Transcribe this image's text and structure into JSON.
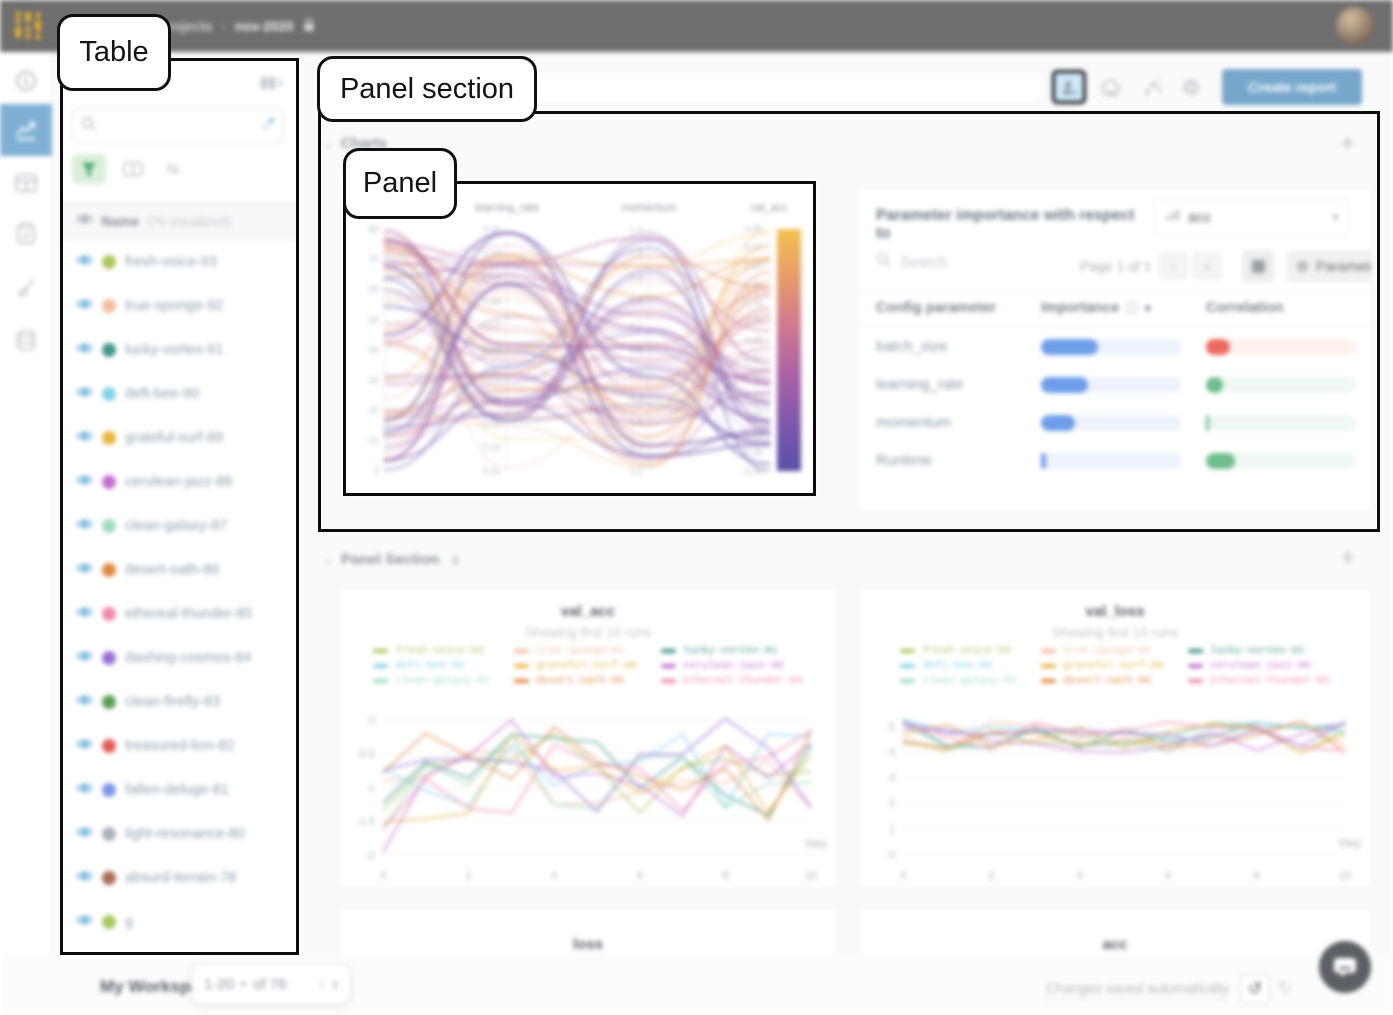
{
  "ui": {
    "plus": "+",
    "chevron_down": "⌄",
    "chevron_left": "‹",
    "chevron_right": "›",
    "caret_down": "▾",
    "kebab": "⋮",
    "undo": "↺",
    "redo": "↻"
  },
  "annotations": {
    "table": "Table",
    "panel_section": "Panel section",
    "panel": "Panel"
  },
  "topbar": {
    "breadcrumb": {
      "projects": "projects",
      "separator": "›",
      "project": "nov-2020"
    }
  },
  "toolbar": {
    "create_report": "Create report"
  },
  "table_panel": {
    "name_header": "Name",
    "visualized_count": "(76 visualized)",
    "pagination": {
      "range": "1-20",
      "of": "of 76"
    },
    "runs": [
      {
        "name": "fresh-voice-93",
        "color": "#a9c75c"
      },
      {
        "name": "true-sponge-92",
        "color": "#f1bd9e"
      },
      {
        "name": "lucky-vortex-91",
        "color": "#3f9688"
      },
      {
        "name": "deft-bee-90",
        "color": "#82d3e8"
      },
      {
        "name": "grateful-surf-89",
        "color": "#e7b73e"
      },
      {
        "name": "cerulean-jazz-88",
        "color": "#c46fd0"
      },
      {
        "name": "clean-galaxy-87",
        "color": "#9edcbe"
      },
      {
        "name": "desert-oath-86",
        "color": "#e0883f"
      },
      {
        "name": "ethereal-thunder-85",
        "color": "#f086ac"
      },
      {
        "name": "dashing-cosmos-84",
        "color": "#9b70d6"
      },
      {
        "name": "clean-firefly-83",
        "color": "#57a050"
      },
      {
        "name": "treasured-lion-82",
        "color": "#e05c56"
      },
      {
        "name": "fallen-deluge-81",
        "color": "#7b97e8"
      },
      {
        "name": "light-resonance-80",
        "color": "#a9b2ba"
      },
      {
        "name": "absurd-terrain-78",
        "color": "#a86c55"
      },
      {
        "name": "g",
        "color": "#a2c95e"
      }
    ]
  },
  "charts_section": {
    "title": "Charts"
  },
  "panel_section2": {
    "title": "Panel Section",
    "count": "4"
  },
  "param_importance": {
    "title": "Parameter importance with respect to",
    "metric": "acc",
    "search_placeholder": "Search",
    "page_label": "Page 1 of 1",
    "parameters_button": "Parameters",
    "columns": [
      "Config parameter",
      "Importance",
      "Correlation"
    ],
    "accent_blue": "#6d9eea",
    "rows": [
      {
        "name": "batch_size",
        "importance": 0.41,
        "correlation": 0.16,
        "corr_color": "#ed6a5e",
        "corr_track": "#fdf1ee"
      },
      {
        "name": "learning_rate",
        "importance": 0.335,
        "correlation": 0.11,
        "corr_color": "#6fbe8b",
        "corr_track": "#eff8f2"
      },
      {
        "name": "momentum",
        "importance": 0.245,
        "correlation": 0.02,
        "corr_color": "#6fbe8b",
        "corr_track": "#eff8f2"
      },
      {
        "name": "Runtime",
        "importance": 0.035,
        "correlation": 0.19,
        "corr_color": "#6fbe8b",
        "corr_track": "#eff8f2"
      }
    ]
  },
  "footer": {
    "workspace": "My Workspace",
    "saved": "Changes saved automatically"
  },
  "chart_data": [
    {
      "type": "parallel-coordinates",
      "axes": [
        {
          "label": "",
          "ticks": [
            "80",
            "70",
            "60",
            "50",
            "40",
            "30",
            "20",
            "10",
            "0"
          ]
        },
        {
          "label": "learning_rate",
          "ticks": [
            "0.11",
            "0.10",
            "0.09",
            "0.08",
            "0.07",
            "0.06",
            "0.05",
            "0.04",
            "0.03",
            "0.02",
            "0.01"
          ]
        },
        {
          "label": "momentum",
          "ticks": [
            "1.1",
            "1.0",
            "0.9",
            "0.8",
            "0.7",
            "0.6",
            "0.5",
            "0.4",
            "0.3",
            "0.2",
            "0.1"
          ]
        },
        {
          "label": "val_acc",
          "ticks": [
            "0.95",
            "0.90",
            "0.85",
            "0.80",
            "0.75",
            "0.70",
            "0.65",
            "0.60",
            "0.55",
            "0.50",
            "0.45",
            "0.40",
            "0.35",
            "0.30"
          ]
        }
      ],
      "colorbar": [
        "#f2c14e",
        "#e69b69",
        "#cd7a8e",
        "#aa62a4",
        "#7e58ab",
        "#5a51a8"
      ],
      "line_palette": [
        "#5a51a8",
        "#7e58ab",
        "#aa62a4",
        "#cd7a8e",
        "#e69b69",
        "#f2c14e"
      ],
      "num_lines": 62,
      "seed": 5
    },
    {
      "type": "line",
      "title": "val_acc",
      "subtitle": "Showing first 10 runs",
      "xlabel": "Step",
      "xlim": [
        0,
        10
      ],
      "ylim": [
        -2.06,
        0.07
      ],
      "x_ticks": [
        0,
        2,
        4,
        6,
        8,
        10
      ],
      "y_ticks": [
        0,
        -0.5,
        -1,
        -1.5,
        -2
      ],
      "dashed_from": 3,
      "band": [
        -1.5,
        0.02
      ],
      "start_band": [
        -2.02,
        -0.7
      ],
      "seed": 11,
      "legend_count": 9,
      "series": [
        {
          "name": "fresh-voice-93",
          "color": "#a9c75c"
        },
        {
          "name": "true-sponge-92",
          "color": "#f1bd9e"
        },
        {
          "name": "lucky-vortex-91",
          "color": "#3f9688"
        },
        {
          "name": "deft-bee-90",
          "color": "#82d3e8"
        },
        {
          "name": "grateful-surf-89",
          "color": "#e7b73e"
        },
        {
          "name": "cerulean-jazz-88",
          "color": "#c46fd0"
        },
        {
          "name": "clean-galaxy-87",
          "color": "#9edcbe"
        },
        {
          "name": "desert-oath-86",
          "color": "#e0883f"
        },
        {
          "name": "ethereal-thunder-85",
          "color": "#f086ac"
        },
        {
          "name": "dashing-cosmos-84",
          "color": "#9b70d6"
        }
      ]
    },
    {
      "type": "line",
      "title": "val_loss",
      "subtitle": "Showing first 10 runs",
      "xlabel": "Step",
      "xlim": [
        0,
        10
      ],
      "ylim": [
        -0.18,
        5.42
      ],
      "x_ticks": [
        0,
        2,
        4,
        6,
        8,
        10
      ],
      "y_ticks": [
        5,
        4,
        3,
        2,
        1,
        0
      ],
      "dashed_from": 2,
      "band": [
        3.95,
        5.18
      ],
      "start_band": [
        4.3,
        5.35
      ],
      "seed": 23,
      "legend_count": 9,
      "series": [
        {
          "name": "fresh-voice-93",
          "color": "#a9c75c"
        },
        {
          "name": "true-sponge-92",
          "color": "#f1bd9e"
        },
        {
          "name": "lucky-vortex-91",
          "color": "#3f9688"
        },
        {
          "name": "deft-bee-90",
          "color": "#82d3e8"
        },
        {
          "name": "grateful-surf-89",
          "color": "#e7b73e"
        },
        {
          "name": "cerulean-jazz-88",
          "color": "#c46fd0"
        },
        {
          "name": "clean-galaxy-87",
          "color": "#9edcbe"
        },
        {
          "name": "desert-oath-86",
          "color": "#e0883f"
        },
        {
          "name": "ethereal-thunder-85",
          "color": "#f086ac"
        },
        {
          "name": "dashing-cosmos-84",
          "color": "#9b70d6"
        }
      ]
    },
    {
      "type": "line",
      "title": "loss"
    },
    {
      "type": "line",
      "title": "acc"
    }
  ]
}
